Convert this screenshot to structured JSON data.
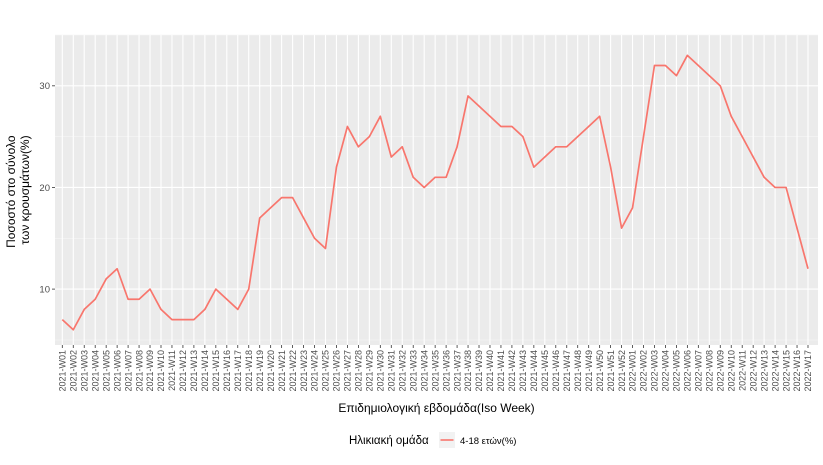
{
  "chart_data": {
    "type": "line",
    "xlabel": "Επιδημιολογική εβδομάδα(Iso Week)",
    "ylabel_lines": [
      "Ποσοστό στο σύνολο",
      "των κρουσμάτων(%)"
    ],
    "ylim": [
      4.5,
      35
    ],
    "yticks": [
      10,
      20,
      30
    ],
    "grid": true,
    "legend_title": "Ηλικιακή ομάδα",
    "legend_position": "bottom",
    "categories": [
      "2021-W01",
      "2021-W02",
      "2021-W03",
      "2021-W04",
      "2021-W05",
      "2021-W06",
      "2021-W07",
      "2021-W08",
      "2021-W09",
      "2021-W10",
      "2021-W11",
      "2021-W12",
      "2021-W13",
      "2021-W14",
      "2021-W15",
      "2021-W16",
      "2021-W17",
      "2021-W18",
      "2021-W19",
      "2021-W20",
      "2021-W21",
      "2021-W22",
      "2021-W23",
      "2021-W24",
      "2021-W25",
      "2021-W26",
      "2021-W27",
      "2021-W28",
      "2021-W29",
      "2021-W30",
      "2021-W31",
      "2021-W32",
      "2021-W33",
      "2021-W34",
      "2021-W35",
      "2021-W36",
      "2021-W37",
      "2021-W38",
      "2021-W39",
      "2021-W40",
      "2021-W41",
      "2021-W42",
      "2021-W43",
      "2021-W44",
      "2021-W45",
      "2021-W46",
      "2021-W47",
      "2021-W48",
      "2021-W49",
      "2021-W50",
      "2021-W51",
      "2021-W52",
      "2022-W01",
      "2022-W02",
      "2022-W03",
      "2022-W04",
      "2022-W05",
      "2022-W06",
      "2022-W07",
      "2022-W08",
      "2022-W09",
      "2022-W10",
      "2022-W11",
      "2022-W12",
      "2022-W13",
      "2022-W14",
      "2022-W15",
      "2022-W16",
      "2022-W17"
    ],
    "series": [
      {
        "name": "4-18 ετών(%)",
        "color": "#F8766D",
        "values": [
          7,
          6,
          8,
          9,
          11,
          12,
          9,
          9,
          10,
          8,
          7,
          7,
          7,
          8,
          10,
          9,
          8,
          10,
          17,
          18,
          19,
          19,
          17,
          15,
          14,
          22,
          26,
          24,
          25,
          27,
          23,
          24,
          21,
          20,
          21,
          21,
          24,
          29,
          28,
          null,
          26,
          26,
          25,
          22,
          23,
          24,
          24,
          null,
          null,
          27,
          22,
          16,
          18,
          null,
          32,
          32,
          31,
          33,
          32,
          null,
          30,
          27,
          null,
          null,
          21,
          20,
          20,
          16,
          12
        ]
      }
    ]
  }
}
